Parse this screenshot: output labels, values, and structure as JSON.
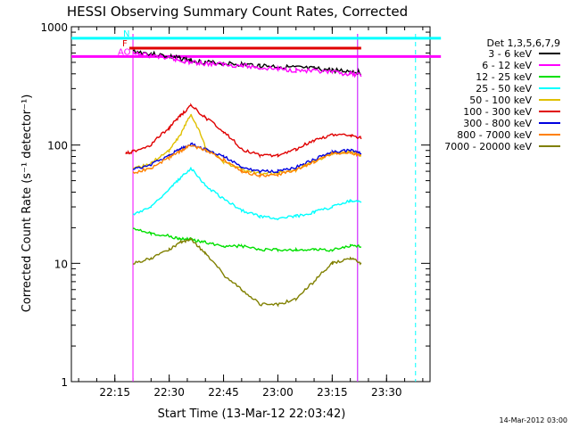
{
  "chart_data": {
    "type": "line",
    "title": "HESSI Observing Summary Count Rates, Corrected",
    "xlabel": "Start Time (13-Mar-12 22:03:42)",
    "ylabel": "Corrected Count Rate (s⁻¹ detector⁻¹)",
    "yscale": "log",
    "ylim": [
      1,
      1000
    ],
    "xlim_minutes": [
      22.05,
      23.7
    ],
    "x_tick_labels": [
      "22:15",
      "22:30",
      "22:45",
      "23:00",
      "23:15",
      "23:30"
    ],
    "y_tick_labels": [
      "1",
      "10",
      "100",
      "1000"
    ],
    "legend_title": "Det 1,3,5,6,7,9",
    "legend_position": "right",
    "timestamp": "14-Mar-2012 03:00",
    "flags": [
      {
        "label": "F",
        "color": "#e00000",
        "start": "22:19",
        "end": "23:23",
        "level": 660
      },
      {
        "label": "AO",
        "color": "#ff00ff",
        "start": "22:03",
        "end": "23:45",
        "level": 560
      },
      {
        "label": "N",
        "color": "#00ffff",
        "start": "22:03",
        "end": "23:45",
        "level": 800
      }
    ],
    "markers_x": [
      "22:20",
      "22:20",
      "23:22",
      "23:22",
      "23:38"
    ],
    "x_times": [
      "22:18",
      "22:20",
      "22:25",
      "22:30",
      "22:33",
      "22:36",
      "22:40",
      "22:45",
      "22:50",
      "22:55",
      "23:00",
      "23:05",
      "23:10",
      "23:15",
      "23:20",
      "23:23"
    ],
    "series": [
      {
        "name": "3 - 6 keV",
        "color": "#000000",
        "values": [
          null,
          620,
          590,
          560,
          540,
          520,
          500,
          490,
          480,
          470,
          460,
          450,
          440,
          430,
          420,
          410
        ]
      },
      {
        "name": "6 - 12 keV",
        "color": "#ff00ff",
        "values": [
          null,
          590,
          570,
          540,
          520,
          500,
          490,
          480,
          470,
          450,
          440,
          430,
          420,
          410,
          400,
          390
        ]
      },
      {
        "name": "12 - 25 keV",
        "color": "#00e000",
        "values": [
          null,
          20,
          18,
          17,
          16,
          16,
          15,
          14,
          14,
          13,
          13,
          13,
          13,
          13,
          14,
          14
        ]
      },
      {
        "name": "25 - 50 keV",
        "color": "#00ffff",
        "values": [
          null,
          26,
          30,
          42,
          52,
          64,
          45,
          35,
          28,
          25,
          24,
          25,
          27,
          30,
          34,
          33
        ]
      },
      {
        "name": "50 - 100 keV",
        "color": "#e0c000",
        "values": [
          null,
          62,
          70,
          90,
          120,
          180,
          95,
          72,
          62,
          58,
          58,
          62,
          72,
          85,
          88,
          82
        ]
      },
      {
        "name": "100 - 300 keV",
        "color": "#e00000",
        "values": [
          85,
          88,
          100,
          140,
          175,
          215,
          170,
          130,
          92,
          82,
          82,
          92,
          110,
          122,
          120,
          115
        ]
      },
      {
        "name": "300 - 800 keV",
        "color": "#0000e0",
        "values": [
          null,
          62,
          68,
          82,
          92,
          102,
          92,
          80,
          65,
          60,
          60,
          65,
          75,
          88,
          90,
          85
        ]
      },
      {
        "name": "800 - 7000 keV",
        "color": "#ff8000",
        "values": [
          null,
          58,
          64,
          78,
          88,
          100,
          90,
          75,
          60,
          55,
          56,
          62,
          72,
          85,
          86,
          82
        ]
      },
      {
        "name": "7000 - 20000 keV",
        "color": "#808000",
        "values": [
          null,
          10,
          11,
          13,
          15,
          16,
          12,
          8,
          6,
          4.5,
          4.5,
          5,
          7,
          10,
          11,
          10
        ]
      }
    ]
  }
}
